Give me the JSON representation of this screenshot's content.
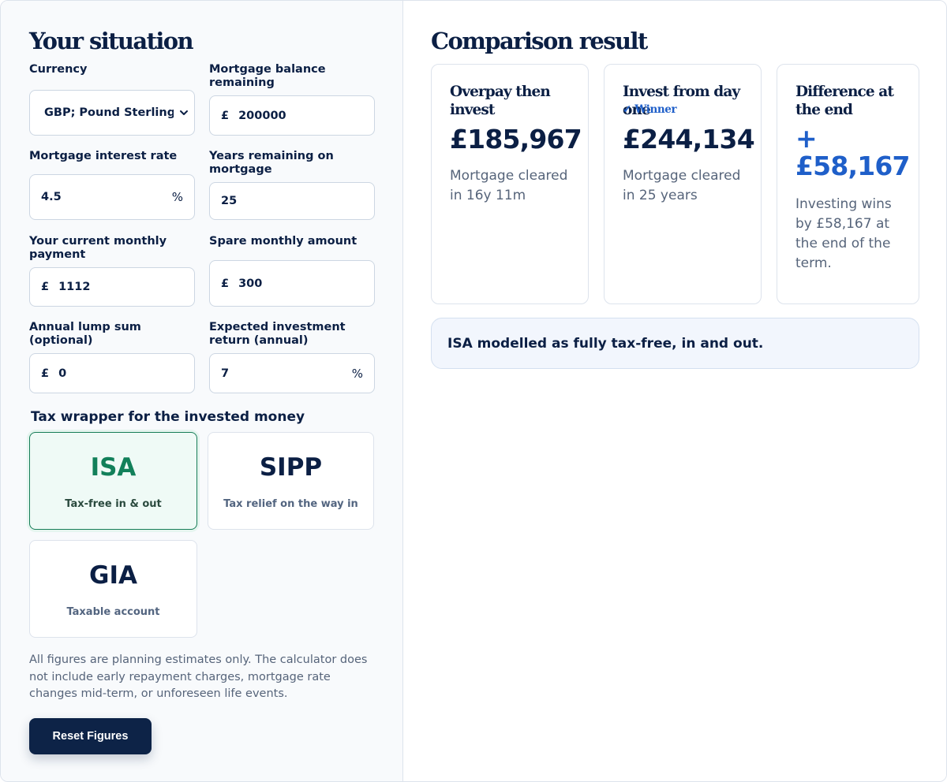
{
  "left_panel": {
    "title": "Your situation",
    "fields": {
      "currency": {
        "label": "Currency",
        "value": "GBP; Pound Sterling"
      },
      "mortgage_balance": {
        "label": "Mortgage balance remaining",
        "prefix": "£",
        "value": "200000"
      },
      "interest_rate": {
        "label": "Mortgage interest rate",
        "value": "4.5",
        "suffix": "%"
      },
      "years_remaining": {
        "label": "Years remaining on mortgage",
        "value": "25"
      },
      "monthly_payment": {
        "label": "Your current monthly payment",
        "prefix": "£",
        "value": "1112"
      },
      "spare_monthly": {
        "label": "Spare monthly amount",
        "prefix": "£",
        "value": "300"
      },
      "lump_sum": {
        "label": "Annual lump sum (optional)",
        "prefix": "£",
        "value": "0"
      },
      "investment_return": {
        "label": "Expected investment return (annual)",
        "value": "7",
        "suffix": "%"
      }
    },
    "tax_wrapper": {
      "heading": "Tax wrapper for the invested money",
      "options": [
        {
          "name": "ISA",
          "desc": "Tax-free in & out",
          "selected": true
        },
        {
          "name": "SIPP",
          "desc": "Tax relief on the way in",
          "selected": false
        },
        {
          "name": "GIA",
          "desc": "Taxable account",
          "selected": false
        }
      ]
    },
    "disclaimer": "All figures are planning estimates only. The calculator does not include early repayment charges, mortgage rate changes mid-term, or unforeseen life events.",
    "reset_label": "Reset Figures"
  },
  "right_panel": {
    "title": "Comparison result",
    "cards": [
      {
        "title": "Overpay then invest",
        "amount": "£185,967",
        "note": "Mortgage cleared in 16y 11m"
      },
      {
        "title": "Invest from day one",
        "badge": "✓ Winner",
        "amount": "£244,134",
        "note": "Mortgage cleared in 25 years"
      },
      {
        "title": "Difference at the end",
        "amount_sign": "+",
        "amount": "£58,167",
        "note": "Investing wins by £58,167 at the end of the term."
      }
    ],
    "isa_note": "ISA modelled as fully tax-free, in and out."
  },
  "colors": {
    "navy": "#0b1f44",
    "accent_blue": "#1f5fc9",
    "isa_green": "#12805a",
    "button_bg": "#0d2347"
  }
}
